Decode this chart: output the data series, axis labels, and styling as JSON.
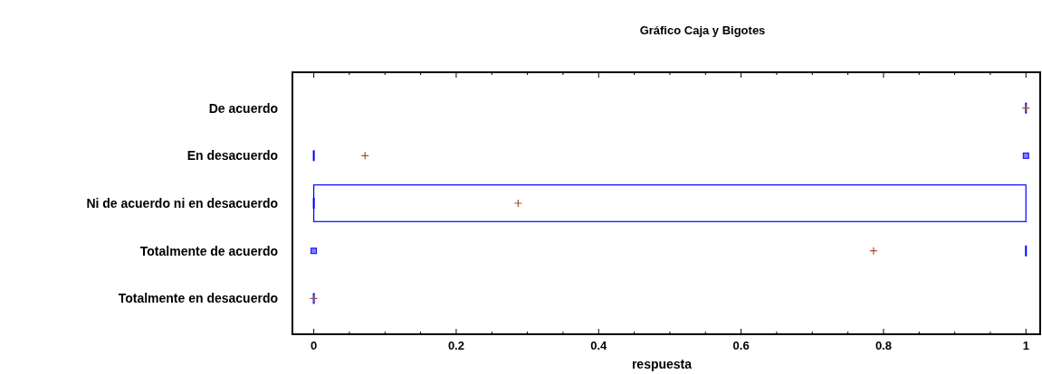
{
  "chart_data": {
    "type": "box",
    "orientation": "horizontal",
    "title": "Gráfico Caja y Bigotes",
    "xlabel": "respuesta",
    "categories": [
      "De acuerdo",
      "En desacuerdo",
      "Ni de acuerdo ni en desacuerdo",
      "Totalmente de acuerdo",
      "Totalmente en desacuerdo"
    ],
    "color": "#0000ff",
    "boxes": [
      {
        "low": 1,
        "q1": 1,
        "median": 1,
        "q3": 1,
        "high": 1,
        "mean": 1
      },
      {
        "low": 0,
        "q1": 0,
        "median": 0,
        "q3": 0,
        "high": 0,
        "mean": 0.072,
        "outliers": [
          1
        ]
      },
      {
        "low": 0,
        "q1": 0,
        "median": 0,
        "q3": 1,
        "high": 1,
        "mean": 0.287
      },
      {
        "low": 1,
        "q1": 1,
        "median": 1,
        "q3": 1,
        "high": 1,
        "mean": 0.786,
        "outliers": [
          0
        ]
      },
      {
        "low": 0,
        "q1": 0,
        "median": 0,
        "q3": 0,
        "high": 0,
        "mean": 0
      }
    ],
    "xlim": [
      -0.03,
      1.02
    ],
    "xticks": [
      0,
      {
        "value": 0.05,
        "label": null
      },
      {
        "value": 0.1,
        "label": null
      },
      {
        "value": 0.15,
        "label": null
      },
      0.2,
      {
        "value": 0.25,
        "label": null
      },
      {
        "value": 0.3,
        "label": null
      },
      {
        "value": 0.35,
        "label": null
      },
      0.4,
      {
        "value": 0.45,
        "label": null
      },
      {
        "value": 0.5,
        "label": null
      },
      {
        "value": 0.55,
        "label": null
      },
      0.6,
      {
        "value": 0.65,
        "label": null
      },
      {
        "value": 0.7,
        "label": null
      },
      {
        "value": 0.75,
        "label": null
      },
      0.8,
      {
        "value": 0.85,
        "label": null
      },
      {
        "value": 0.9,
        "label": null
      },
      {
        "value": 0.95,
        "label": null
      },
      1
    ],
    "grid": false
  }
}
